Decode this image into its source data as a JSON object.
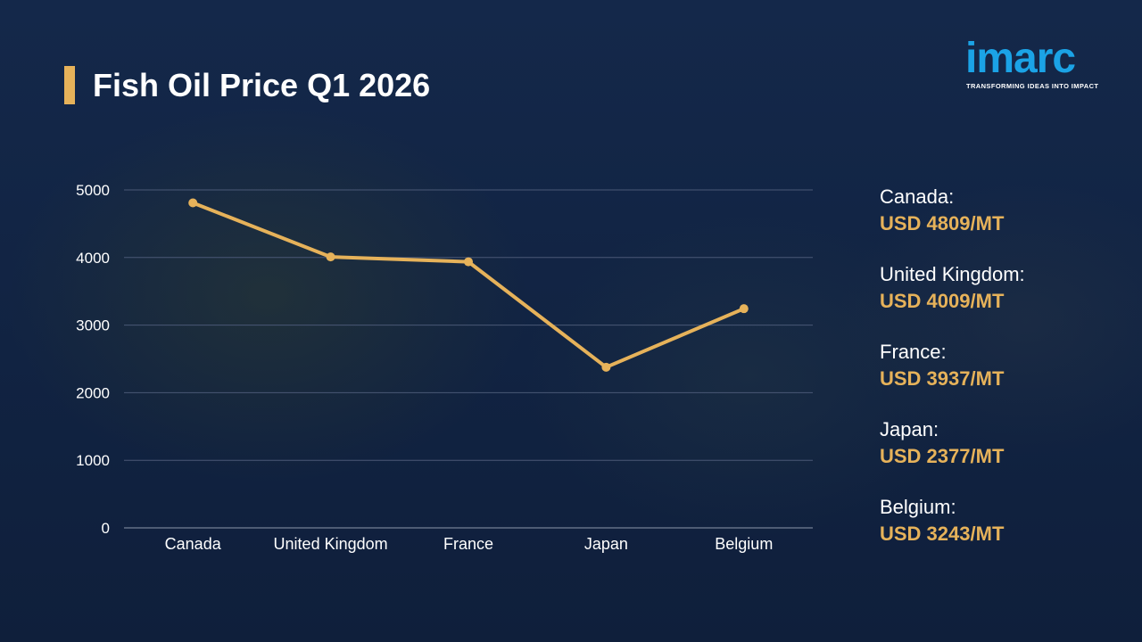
{
  "title": "Fish Oil Price Q1 2026",
  "logo": {
    "word": "imarc",
    "tagline": "TRANSFORMING IDEAS INTO IMPACT"
  },
  "colors": {
    "background": "#12233f",
    "accent": "#e6b25a",
    "line": "#e6b25a",
    "logo": "#1ba3e6",
    "gridline": "#4a5876",
    "text": "#ffffff"
  },
  "chart_data": {
    "type": "line",
    "categories": [
      "Canada",
      "United Kingdom",
      "France",
      "Japan",
      "Belgium"
    ],
    "series": [
      {
        "values": [
          4809,
          4009,
          3937,
          2377,
          3243
        ]
      }
    ],
    "yticks": [
      "0",
      "1000",
      "2000",
      "3000",
      "4000",
      "5000"
    ],
    "ylim": [
      0,
      5000
    ],
    "grid": true,
    "legend": "none"
  },
  "price_panel": [
    {
      "country": "Canada:",
      "price": "USD 4809/MT"
    },
    {
      "country": "United Kingdom:",
      "price": "USD 4009/MT"
    },
    {
      "country": "France:",
      "price": "USD 3937/MT"
    },
    {
      "country": "Japan:",
      "price": "USD 2377/MT"
    },
    {
      "country": "Belgium:",
      "price": "USD 3243/MT"
    }
  ]
}
